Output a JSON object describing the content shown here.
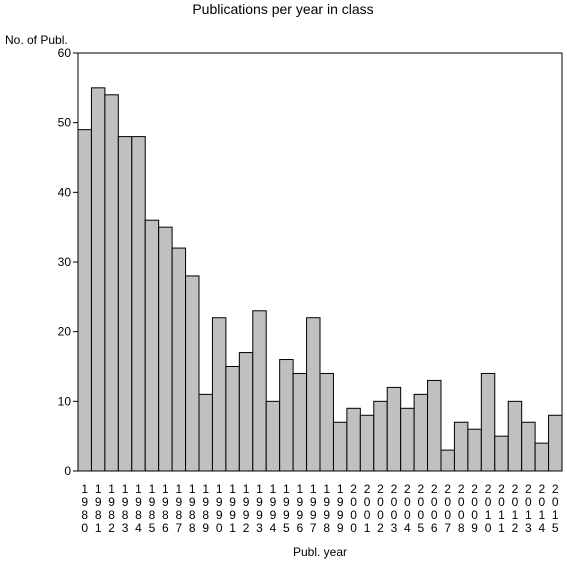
{
  "chart_data": {
    "type": "bar",
    "title": "Publications per year in class",
    "xlabel": "Publ. year",
    "ylabel": "No. of Publ.",
    "ylim": [
      0,
      60
    ],
    "yticks": [
      0,
      10,
      20,
      30,
      40,
      50,
      60
    ],
    "categories": [
      "1980",
      "1981",
      "1982",
      "1983",
      "1984",
      "1985",
      "1986",
      "1987",
      "1988",
      "1989",
      "1990",
      "1991",
      "1992",
      "1993",
      "1994",
      "1995",
      "1996",
      "1997",
      "1998",
      "1999",
      "2000",
      "2001",
      "2002",
      "2003",
      "2004",
      "2005",
      "2006",
      "2007",
      "2008",
      "2009",
      "2010",
      "2011",
      "2012",
      "2013",
      "2014",
      "2015"
    ],
    "values": [
      49,
      55,
      54,
      48,
      48,
      36,
      35,
      32,
      28,
      11,
      22,
      15,
      17,
      23,
      10,
      16,
      14,
      22,
      14,
      7,
      9,
      8,
      10,
      12,
      9,
      11,
      13,
      3,
      7,
      6,
      14,
      5,
      10,
      7,
      4,
      8
    ],
    "colors": {
      "bar_fill": "#c0c0c0",
      "bar_stroke": "#000000",
      "background": "#ffffff"
    },
    "grid": false,
    "legend": "none"
  }
}
